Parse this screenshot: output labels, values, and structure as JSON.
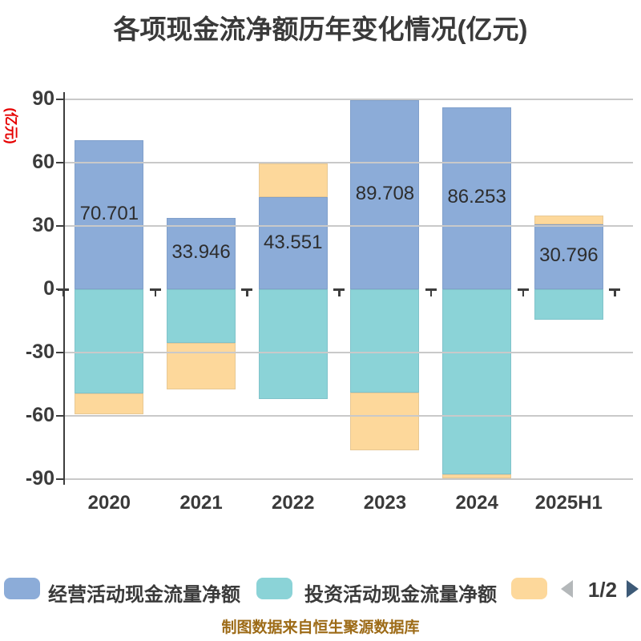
{
  "title": "各项现金流净额历年变化情况(亿元)",
  "y_axis_unit_label": "(亿元)",
  "footer_credit": "制图数据来自恒生聚源数据库",
  "legend": {
    "items": [
      {
        "label": "经营活动现金流量净额",
        "color": "#8CACD8"
      },
      {
        "label": "投资活动现金流量净额",
        "color": "#8BD3D7"
      },
      {
        "label": "",
        "color": "#FDD89B"
      }
    ],
    "pager": {
      "text": "1/2",
      "prev_color": "#b4b8ba",
      "next_color": "#3d5a77"
    }
  },
  "colors": {
    "title_text": "#3a3a3a",
    "axis_line": "#3d3d3d",
    "gridline": "#c9c9c9",
    "unit_label_red": "#e60000",
    "bar_blue": "#8CACD8",
    "bar_teal": "#8BD3D7",
    "bar_yellow": "#FDD89B",
    "footer_text": "#9d6b17"
  },
  "chart_data": {
    "type": "bar",
    "stacked": true,
    "grid": true,
    "legend_position": "bottom",
    "title": "各项现金流净额历年变化情况(亿元)",
    "ylabel": "(亿元)",
    "ylim": [
      -90,
      90
    ],
    "yticks": [
      90,
      60,
      30,
      0,
      -30,
      -60,
      -90
    ],
    "categories": [
      "2020",
      "2021",
      "2022",
      "2023",
      "2024",
      "2025H1"
    ],
    "series": [
      {
        "name": "经营活动现金流量净额",
        "color": "#8CACD8",
        "show_labels": true,
        "values": [
          70.701,
          33.946,
          43.551,
          89.708,
          86.253,
          30.796
        ]
      },
      {
        "name": "投资活动现金流量净额",
        "color": "#8BD3D7",
        "show_labels": false,
        "values": [
          -49.3,
          -25.4,
          -52.0,
          -49.0,
          -87.7,
          -14.5
        ]
      },
      {
        "name": "",
        "color": "#FDD89B",
        "show_labels": false,
        "values": [
          -10.1,
          -22.1,
          16.2,
          -27.5,
          -1.8,
          4.0
        ]
      }
    ]
  }
}
